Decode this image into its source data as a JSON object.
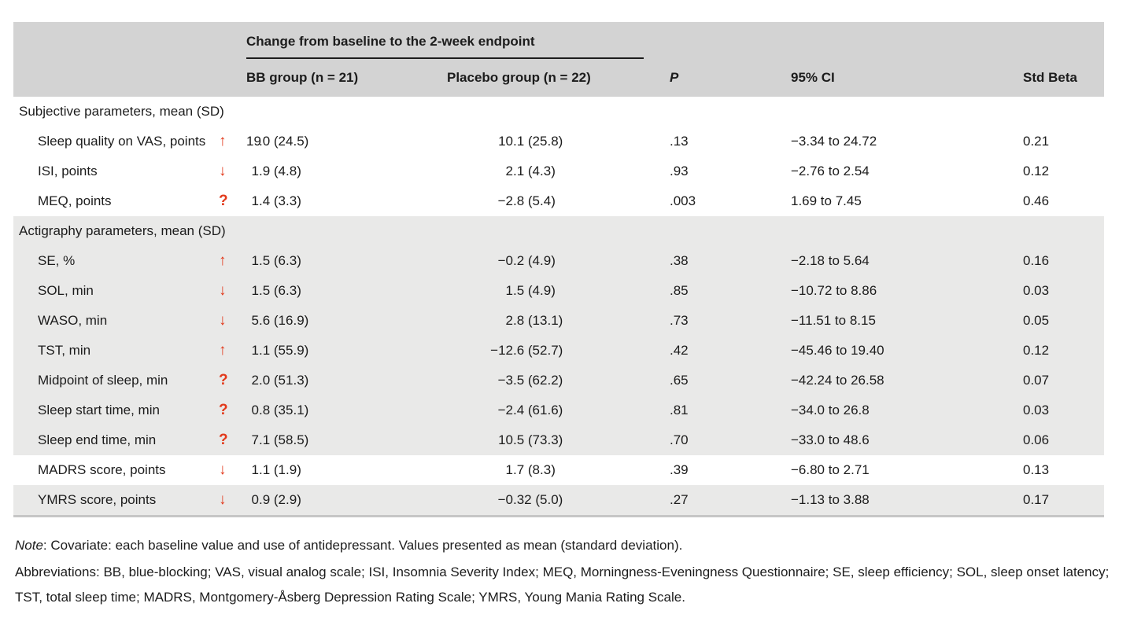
{
  "colors": {
    "accent_red": "#e2391b",
    "header_band": "#d3d3d3",
    "section_band": "#e9e9e8",
    "bottom_rule": "#c6c6c6"
  },
  "icons": {
    "up": "↑",
    "down": "↓",
    "unknown": "?"
  },
  "table": {
    "spanner": "Change from baseline to the 2-week endpoint",
    "columns": {
      "bb": "BB group (n = 21)",
      "placebo": "Placebo group (n = 22)",
      "p": "P",
      "ci": "95% CI",
      "beta": "Std Beta"
    },
    "rows": [
      {
        "type": "section",
        "label": "Subjective parameters, mean (SD)",
        "shaded": false
      },
      {
        "type": "data",
        "label": "Sleep quality on VAS, points",
        "trend": "up",
        "bb": "19.0 (24.5)",
        "placebo": "10.1 (25.8)",
        "p": ".13",
        "ci": "−3.34 to 24.72",
        "beta": "0.21",
        "shaded": false
      },
      {
        "type": "data",
        "label": "ISI, points",
        "trend": "down",
        "bb": "1.9 (4.8)",
        "placebo": "2.1 (4.3)",
        "p": ".93",
        "ci": "−2.76 to 2.54",
        "beta": "0.12",
        "shaded": false
      },
      {
        "type": "data",
        "label": "MEQ, points",
        "trend": "unknown",
        "bb": "1.4 (3.3)",
        "placebo": "−2.8 (5.4)",
        "p": ".003",
        "ci": "1.69 to 7.45",
        "beta": "0.46",
        "shaded": false
      },
      {
        "type": "section",
        "label": "Actigraphy parameters, mean (SD)",
        "shaded": true
      },
      {
        "type": "data",
        "label": "SE, %",
        "trend": "up",
        "bb": "1.5 (6.3)",
        "placebo": "−0.2 (4.9)",
        "p": ".38",
        "ci": "−2.18 to 5.64",
        "beta": "0.16",
        "shaded": true
      },
      {
        "type": "data",
        "label": "SOL, min",
        "trend": "down",
        "bb": "1.5 (6.3)",
        "placebo": "1.5 (4.9)",
        "p": ".85",
        "ci": "−10.72 to 8.86",
        "beta": "0.03",
        "shaded": true
      },
      {
        "type": "data",
        "label": "WASO, min",
        "trend": "down",
        "bb": "5.6 (16.9)",
        "placebo": "2.8 (13.1)",
        "p": ".73",
        "ci": "−11.51 to 8.15",
        "beta": "0.05",
        "shaded": true
      },
      {
        "type": "data",
        "label": "TST, min",
        "trend": "up",
        "bb": "1.1 (55.9)",
        "placebo": "−12.6 (52.7)",
        "p": ".42",
        "ci": "−45.46 to 19.40",
        "beta": "0.12",
        "shaded": true
      },
      {
        "type": "data",
        "label": "Midpoint of sleep, min",
        "trend": "unknown",
        "bb": "2.0 (51.3)",
        "placebo": "−3.5 (62.2)",
        "p": ".65",
        "ci": "−42.24 to 26.58",
        "beta": "0.07",
        "shaded": true
      },
      {
        "type": "data",
        "label": "Sleep start time, min",
        "trend": "unknown",
        "bb": "0.8 (35.1)",
        "placebo": "−2.4 (61.6)",
        "p": ".81",
        "ci": "−34.0 to 26.8",
        "beta": "0.03",
        "shaded": true
      },
      {
        "type": "data",
        "label": "Sleep end time, min",
        "trend": "unknown",
        "bb": "7.1 (58.5)",
        "placebo": "10.5 (73.3)",
        "p": ".70",
        "ci": "−33.0 to 48.6",
        "beta": "0.06",
        "shaded": true
      },
      {
        "type": "data",
        "label": "MADRS score, points",
        "trend": "down",
        "bb": "1.1 (1.9)",
        "placebo": "1.7 (8.3)",
        "p": ".39",
        "ci": "−6.80 to 2.71",
        "beta": "0.13",
        "shaded": false
      },
      {
        "type": "data",
        "label": "YMRS score, points",
        "trend": "down",
        "bb": "0.9 (2.9)",
        "placebo": "−0.32 (5.0)",
        "p": ".27",
        "ci": "−1.13 to 3.88",
        "beta": "0.17",
        "shaded": true
      }
    ]
  },
  "footnotes": {
    "note_prefix": "Note",
    "note_text": ": Covariate: each baseline value and use of antidepressant. Values presented as mean (standard deviation).",
    "abbreviations": "Abbreviations: BB, blue-blocking; VAS, visual analog scale; ISI, Insomnia Severity Index; MEQ, Morningness-Eveningness Questionnaire; SE, sleep efficiency; SOL, sleep onset latency; TST, total sleep time; MADRS, Montgomery-Åsberg Depression Rating Scale; YMRS, Young Mania Rating Scale."
  }
}
